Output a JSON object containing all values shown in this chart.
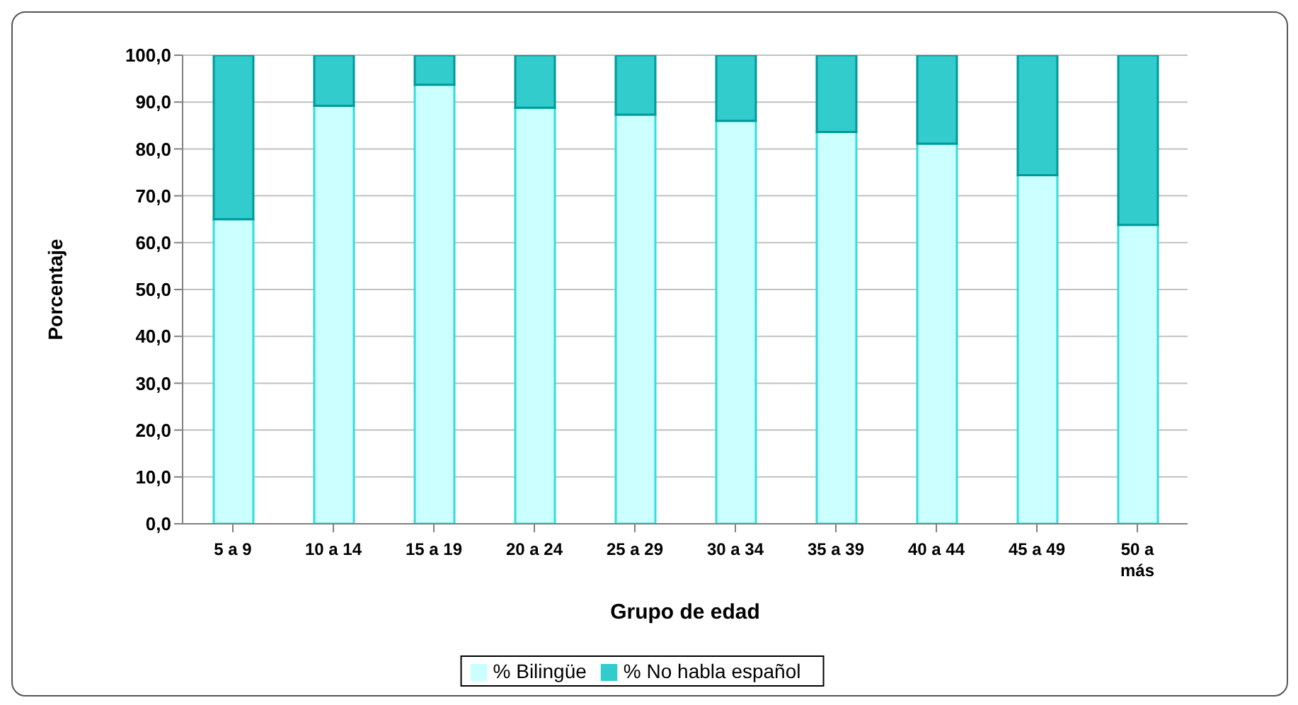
{
  "chart_data": {
    "type": "bar",
    "stacked": true,
    "xlabel": "Grupo de edad",
    "ylabel": "Porcentaje",
    "categories": [
      "5 a 9",
      "10 a 14",
      "15 a 19",
      "20 a 24",
      "25 a 29",
      "30 a 34",
      "35 a 39",
      "40 a 44",
      "45 a 49",
      "50 a más"
    ],
    "series": [
      {
        "name": "% Bilingüe",
        "color": "#ccffff",
        "values": [
          65.0,
          89.2,
          93.7,
          88.8,
          87.3,
          86.0,
          83.6,
          81.1,
          74.4,
          63.8
        ]
      },
      {
        "name": "% No habla español",
        "color": "#33cccc",
        "values": [
          35.0,
          10.8,
          6.3,
          11.2,
          12.7,
          14.0,
          16.4,
          18.9,
          25.6,
          36.2
        ]
      }
    ],
    "ylim": [
      0,
      100
    ],
    "yticks": [
      {
        "value": 0,
        "label": "0,0"
      },
      {
        "value": 10,
        "label": "10,0"
      },
      {
        "value": 20,
        "label": "20,0"
      },
      {
        "value": 30,
        "label": "30,0"
      },
      {
        "value": 40,
        "label": "40,0"
      },
      {
        "value": 50,
        "label": "50,0"
      },
      {
        "value": 60,
        "label": "60,0"
      },
      {
        "value": 70,
        "label": "70,0"
      },
      {
        "value": 80,
        "label": "80,0"
      },
      {
        "value": 90,
        "label": "90,0"
      },
      {
        "value": 100,
        "label": "100,0"
      }
    ],
    "grid": "y",
    "legend": "bottom"
  }
}
